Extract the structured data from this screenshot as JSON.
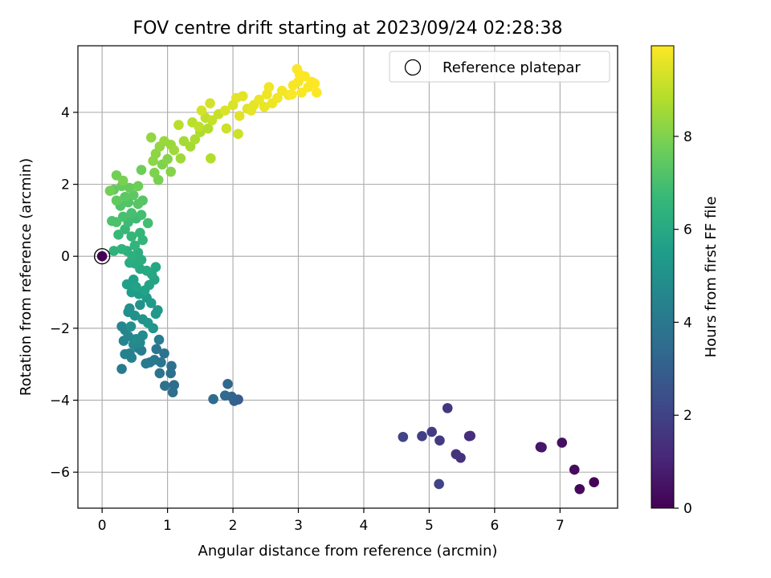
{
  "chart_data": {
    "type": "scatter",
    "title": "FOV centre drift starting at 2023/09/24 02:28:38",
    "xlabel": "Angular distance from reference (arcmin)",
    "ylabel": "Rotation from reference (arcmin)",
    "xlim": [
      -0.37,
      7.88
    ],
    "ylim": [
      -7.0,
      5.85
    ],
    "xticks": [
      0,
      1,
      2,
      3,
      4,
      5,
      6,
      7
    ],
    "yticks": [
      -6,
      -4,
      -2,
      0,
      2,
      4
    ],
    "grid": true,
    "legend": {
      "placement": "top-right",
      "entries": [
        {
          "label": "Reference platepar",
          "marker": "open-circle"
        }
      ]
    },
    "reference_point": {
      "x": 0,
      "y": 0,
      "hours": 0.0
    },
    "colorbar": {
      "label": "Hours from first FF file",
      "colormap": "viridis",
      "range": [
        0,
        9.95
      ],
      "ticks": [
        0,
        2,
        4,
        6,
        8
      ],
      "stops": [
        "#440154",
        "#482878",
        "#3e4989",
        "#31688e",
        "#26828e",
        "#1f9e89",
        "#35b779",
        "#6ece58",
        "#b5de2b",
        "#fde725"
      ]
    },
    "series": [
      {
        "points": [
          {
            "x": 7.52,
            "y": -6.28,
            "h": 0.1
          },
          {
            "x": 7.3,
            "y": -6.47,
            "h": 0.2
          },
          {
            "x": 7.22,
            "y": -5.93,
            "h": 0.3
          },
          {
            "x": 7.03,
            "y": -5.18,
            "h": 0.4
          },
          {
            "x": 6.7,
            "y": -5.3,
            "h": 0.5
          },
          {
            "x": 6.72,
            "y": -5.31,
            "h": 0.6
          },
          {
            "x": 5.61,
            "y": -5.0,
            "h": 1.2
          },
          {
            "x": 5.63,
            "y": -4.99,
            "h": 1.3
          },
          {
            "x": 5.48,
            "y": -5.6,
            "h": 1.4
          },
          {
            "x": 5.41,
            "y": -5.5,
            "h": 1.5
          },
          {
            "x": 5.28,
            "y": -4.22,
            "h": 1.6
          },
          {
            "x": 5.16,
            "y": -5.12,
            "h": 1.7
          },
          {
            "x": 5.04,
            "y": -4.88,
            "h": 1.8
          },
          {
            "x": 4.89,
            "y": -5.0,
            "h": 1.9
          },
          {
            "x": 4.6,
            "y": -5.02,
            "h": 2.0
          },
          {
            "x": 5.15,
            "y": -6.33,
            "h": 2.0
          },
          {
            "x": 2.08,
            "y": -3.98,
            "h": 3.0
          },
          {
            "x": 2.02,
            "y": -4.02,
            "h": 3.1
          },
          {
            "x": 1.98,
            "y": -3.9,
            "h": 3.2
          },
          {
            "x": 1.92,
            "y": -3.55,
            "h": 3.3
          },
          {
            "x": 1.88,
            "y": -3.87,
            "h": 3.4
          },
          {
            "x": 1.7,
            "y": -3.97,
            "h": 3.5
          },
          {
            "x": 1.1,
            "y": -3.58,
            "h": 3.5
          },
          {
            "x": 1.08,
            "y": -3.78,
            "h": 3.6
          },
          {
            "x": 1.05,
            "y": -3.25,
            "h": 3.6
          },
          {
            "x": 1.06,
            "y": -3.05,
            "h": 3.7
          },
          {
            "x": 0.96,
            "y": -3.6,
            "h": 3.7
          },
          {
            "x": 0.95,
            "y": -2.7,
            "h": 3.8
          },
          {
            "x": 0.88,
            "y": -3.25,
            "h": 3.8
          },
          {
            "x": 0.9,
            "y": -2.95,
            "h": 3.9
          },
          {
            "x": 0.83,
            "y": -2.58,
            "h": 3.9
          },
          {
            "x": 0.8,
            "y": -2.88,
            "h": 4.0
          },
          {
            "x": 0.73,
            "y": -2.95,
            "h": 4.0
          },
          {
            "x": 0.67,
            "y": -2.98,
            "h": 4.1
          },
          {
            "x": 0.3,
            "y": -3.13,
            "h": 4.1
          },
          {
            "x": 0.87,
            "y": -2.32,
            "h": 4.2
          },
          {
            "x": 0.6,
            "y": -2.62,
            "h": 4.2
          },
          {
            "x": 0.55,
            "y": -2.55,
            "h": 4.3
          },
          {
            "x": 0.42,
            "y": -2.7,
            "h": 4.3
          },
          {
            "x": 0.45,
            "y": -2.82,
            "h": 4.4
          },
          {
            "x": 0.35,
            "y": -2.72,
            "h": 4.4
          },
          {
            "x": 0.33,
            "y": -2.35,
            "h": 4.5
          },
          {
            "x": 0.35,
            "y": -2.05,
            "h": 4.5
          },
          {
            "x": 0.3,
            "y": -1.95,
            "h": 4.6
          },
          {
            "x": 0.4,
            "y": -2.22,
            "h": 4.6
          },
          {
            "x": 0.48,
            "y": -2.45,
            "h": 4.7
          },
          {
            "x": 0.58,
            "y": -2.4,
            "h": 4.7
          },
          {
            "x": 0.62,
            "y": -2.2,
            "h": 4.8
          },
          {
            "x": 0.52,
            "y": -2.3,
            "h": 4.8
          },
          {
            "x": 0.44,
            "y": -1.95,
            "h": 4.9
          },
          {
            "x": 0.4,
            "y": -1.55,
            "h": 4.9
          },
          {
            "x": 0.42,
            "y": -1.45,
            "h": 5.0
          },
          {
            "x": 0.5,
            "y": -1.65,
            "h": 5.0
          },
          {
            "x": 0.62,
            "y": -1.75,
            "h": 5.1
          },
          {
            "x": 0.58,
            "y": -1.35,
            "h": 5.1
          },
          {
            "x": 0.7,
            "y": -1.85,
            "h": 5.2
          },
          {
            "x": 0.78,
            "y": -2.0,
            "h": 5.2
          },
          {
            "x": 0.82,
            "y": -1.6,
            "h": 5.3
          },
          {
            "x": 0.85,
            "y": -1.5,
            "h": 5.3
          },
          {
            "x": 0.75,
            "y": -1.3,
            "h": 5.4
          },
          {
            "x": 0.68,
            "y": -1.15,
            "h": 5.4
          },
          {
            "x": 0.56,
            "y": -1.05,
            "h": 5.5
          },
          {
            "x": 0.45,
            "y": -1.0,
            "h": 5.5
          },
          {
            "x": 0.38,
            "y": -0.78,
            "h": 5.6
          },
          {
            "x": 0.48,
            "y": -0.65,
            "h": 5.6
          },
          {
            "x": 0.52,
            "y": -0.85,
            "h": 5.7
          },
          {
            "x": 0.65,
            "y": -0.95,
            "h": 5.7
          },
          {
            "x": 0.72,
            "y": -0.8,
            "h": 5.8
          },
          {
            "x": 0.8,
            "y": -0.65,
            "h": 5.8
          },
          {
            "x": 0.76,
            "y": -0.5,
            "h": 5.9
          },
          {
            "x": 0.82,
            "y": -0.3,
            "h": 5.9
          },
          {
            "x": 0.68,
            "y": -0.4,
            "h": 6.0
          },
          {
            "x": 0.58,
            "y": -0.35,
            "h": 6.0
          },
          {
            "x": 0.5,
            "y": -0.2,
            "h": 6.1
          },
          {
            "x": 0.42,
            "y": -0.18,
            "h": 6.1
          },
          {
            "x": 0.6,
            "y": -0.1,
            "h": 6.2
          },
          {
            "x": 0.55,
            "y": 0.1,
            "h": 6.2
          },
          {
            "x": 0.46,
            "y": 0.0,
            "h": 6.3
          },
          {
            "x": 0.38,
            "y": 0.15,
            "h": 6.3
          },
          {
            "x": 0.3,
            "y": 0.2,
            "h": 6.4
          },
          {
            "x": 0.18,
            "y": 0.15,
            "h": 6.4
          },
          {
            "x": 0.5,
            "y": 0.3,
            "h": 6.5
          },
          {
            "x": 0.62,
            "y": 0.45,
            "h": 6.5
          },
          {
            "x": 0.58,
            "y": 0.65,
            "h": 6.6
          },
          {
            "x": 0.45,
            "y": 0.55,
            "h": 6.6
          },
          {
            "x": 0.35,
            "y": 0.75,
            "h": 6.7
          },
          {
            "x": 0.25,
            "y": 0.6,
            "h": 6.7
          },
          {
            "x": 0.4,
            "y": 0.95,
            "h": 6.8
          },
          {
            "x": 0.52,
            "y": 1.05,
            "h": 6.8
          },
          {
            "x": 0.7,
            "y": 0.92,
            "h": 6.9
          },
          {
            "x": 0.6,
            "y": 1.15,
            "h": 6.9
          },
          {
            "x": 0.45,
            "y": 1.2,
            "h": 7.0
          },
          {
            "x": 0.32,
            "y": 1.1,
            "h": 7.0
          },
          {
            "x": 0.22,
            "y": 0.95,
            "h": 7.1
          },
          {
            "x": 0.15,
            "y": 0.98,
            "h": 7.1
          },
          {
            "x": 0.28,
            "y": 1.4,
            "h": 7.2
          },
          {
            "x": 0.4,
            "y": 1.5,
            "h": 7.2
          },
          {
            "x": 0.55,
            "y": 1.45,
            "h": 7.3
          },
          {
            "x": 0.62,
            "y": 1.55,
            "h": 7.3
          },
          {
            "x": 0.48,
            "y": 1.7,
            "h": 7.4
          },
          {
            "x": 0.35,
            "y": 1.65,
            "h": 7.4
          },
          {
            "x": 0.22,
            "y": 1.55,
            "h": 7.5
          },
          {
            "x": 0.18,
            "y": 1.85,
            "h": 7.5
          },
          {
            "x": 0.3,
            "y": 1.95,
            "h": 7.6
          },
          {
            "x": 0.42,
            "y": 1.9,
            "h": 7.6
          },
          {
            "x": 0.55,
            "y": 1.95,
            "h": 7.7
          },
          {
            "x": 0.6,
            "y": 2.4,
            "h": 7.7
          },
          {
            "x": 0.22,
            "y": 2.25,
            "h": 7.8
          },
          {
            "x": 0.12,
            "y": 1.82,
            "h": 7.8
          },
          {
            "x": 0.32,
            "y": 2.1,
            "h": 7.9
          },
          {
            "x": 0.86,
            "y": 2.12,
            "h": 7.9
          },
          {
            "x": 0.8,
            "y": 2.32,
            "h": 8.0
          },
          {
            "x": 0.92,
            "y": 2.55,
            "h": 8.0
          },
          {
            "x": 1.05,
            "y": 2.35,
            "h": 8.1
          },
          {
            "x": 1.0,
            "y": 2.7,
            "h": 8.1
          },
          {
            "x": 0.78,
            "y": 2.65,
            "h": 8.2
          },
          {
            "x": 0.82,
            "y": 2.85,
            "h": 8.2
          },
          {
            "x": 0.75,
            "y": 3.3,
            "h": 8.3
          },
          {
            "x": 0.88,
            "y": 3.05,
            "h": 8.3
          },
          {
            "x": 0.95,
            "y": 3.2,
            "h": 8.4
          },
          {
            "x": 1.05,
            "y": 3.1,
            "h": 8.4
          },
          {
            "x": 1.2,
            "y": 2.72,
            "h": 8.5
          },
          {
            "x": 1.1,
            "y": 2.95,
            "h": 8.5
          },
          {
            "x": 1.25,
            "y": 3.2,
            "h": 8.6
          },
          {
            "x": 1.35,
            "y": 3.05,
            "h": 8.6
          },
          {
            "x": 1.42,
            "y": 3.25,
            "h": 8.7
          },
          {
            "x": 1.5,
            "y": 3.45,
            "h": 8.7
          },
          {
            "x": 1.62,
            "y": 3.55,
            "h": 8.8
          },
          {
            "x": 1.66,
            "y": 2.72,
            "h": 8.8
          },
          {
            "x": 1.17,
            "y": 3.65,
            "h": 8.9
          },
          {
            "x": 1.38,
            "y": 3.72,
            "h": 8.9
          },
          {
            "x": 1.48,
            "y": 3.6,
            "h": 9.0
          },
          {
            "x": 1.58,
            "y": 3.85,
            "h": 9.0
          },
          {
            "x": 1.68,
            "y": 3.78,
            "h": 9.1
          },
          {
            "x": 1.78,
            "y": 3.95,
            "h": 9.1
          },
          {
            "x": 1.9,
            "y": 3.55,
            "h": 9.2
          },
          {
            "x": 2.08,
            "y": 3.4,
            "h": 9.2
          },
          {
            "x": 1.52,
            "y": 4.05,
            "h": 9.3
          },
          {
            "x": 1.65,
            "y": 4.25,
            "h": 9.3
          },
          {
            "x": 1.88,
            "y": 4.05,
            "h": 9.4
          },
          {
            "x": 2.0,
            "y": 4.2,
            "h": 9.4
          },
          {
            "x": 2.1,
            "y": 3.9,
            "h": 9.5
          },
          {
            "x": 2.22,
            "y": 4.1,
            "h": 9.5
          },
          {
            "x": 2.05,
            "y": 4.4,
            "h": 9.55
          },
          {
            "x": 2.15,
            "y": 4.45,
            "h": 9.55
          },
          {
            "x": 2.32,
            "y": 4.2,
            "h": 9.6
          },
          {
            "x": 2.28,
            "y": 4.05,
            "h": 9.6
          },
          {
            "x": 2.4,
            "y": 4.35,
            "h": 9.65
          },
          {
            "x": 2.48,
            "y": 4.15,
            "h": 9.65
          },
          {
            "x": 2.52,
            "y": 4.5,
            "h": 9.7
          },
          {
            "x": 2.6,
            "y": 4.25,
            "h": 9.7
          },
          {
            "x": 2.68,
            "y": 4.4,
            "h": 9.75
          },
          {
            "x": 2.55,
            "y": 4.7,
            "h": 9.75
          },
          {
            "x": 2.75,
            "y": 4.6,
            "h": 9.8
          },
          {
            "x": 2.85,
            "y": 4.48,
            "h": 9.8
          },
          {
            "x": 2.92,
            "y": 4.75,
            "h": 9.85
          },
          {
            "x": 3.0,
            "y": 4.85,
            "h": 9.85
          },
          {
            "x": 3.05,
            "y": 4.55,
            "h": 9.9
          },
          {
            "x": 3.15,
            "y": 4.7,
            "h": 9.9
          },
          {
            "x": 2.98,
            "y": 5.2,
            "h": 9.92
          },
          {
            "x": 3.1,
            "y": 5.0,
            "h": 9.92
          },
          {
            "x": 3.2,
            "y": 4.85,
            "h": 9.95
          },
          {
            "x": 3.28,
            "y": 4.55,
            "h": 9.95
          },
          {
            "x": 3.25,
            "y": 4.8,
            "h": 9.95
          },
          {
            "x": 2.9,
            "y": 4.5,
            "h": 9.9
          },
          {
            "x": 3.02,
            "y": 5.05,
            "h": 9.93
          }
        ]
      }
    ]
  }
}
